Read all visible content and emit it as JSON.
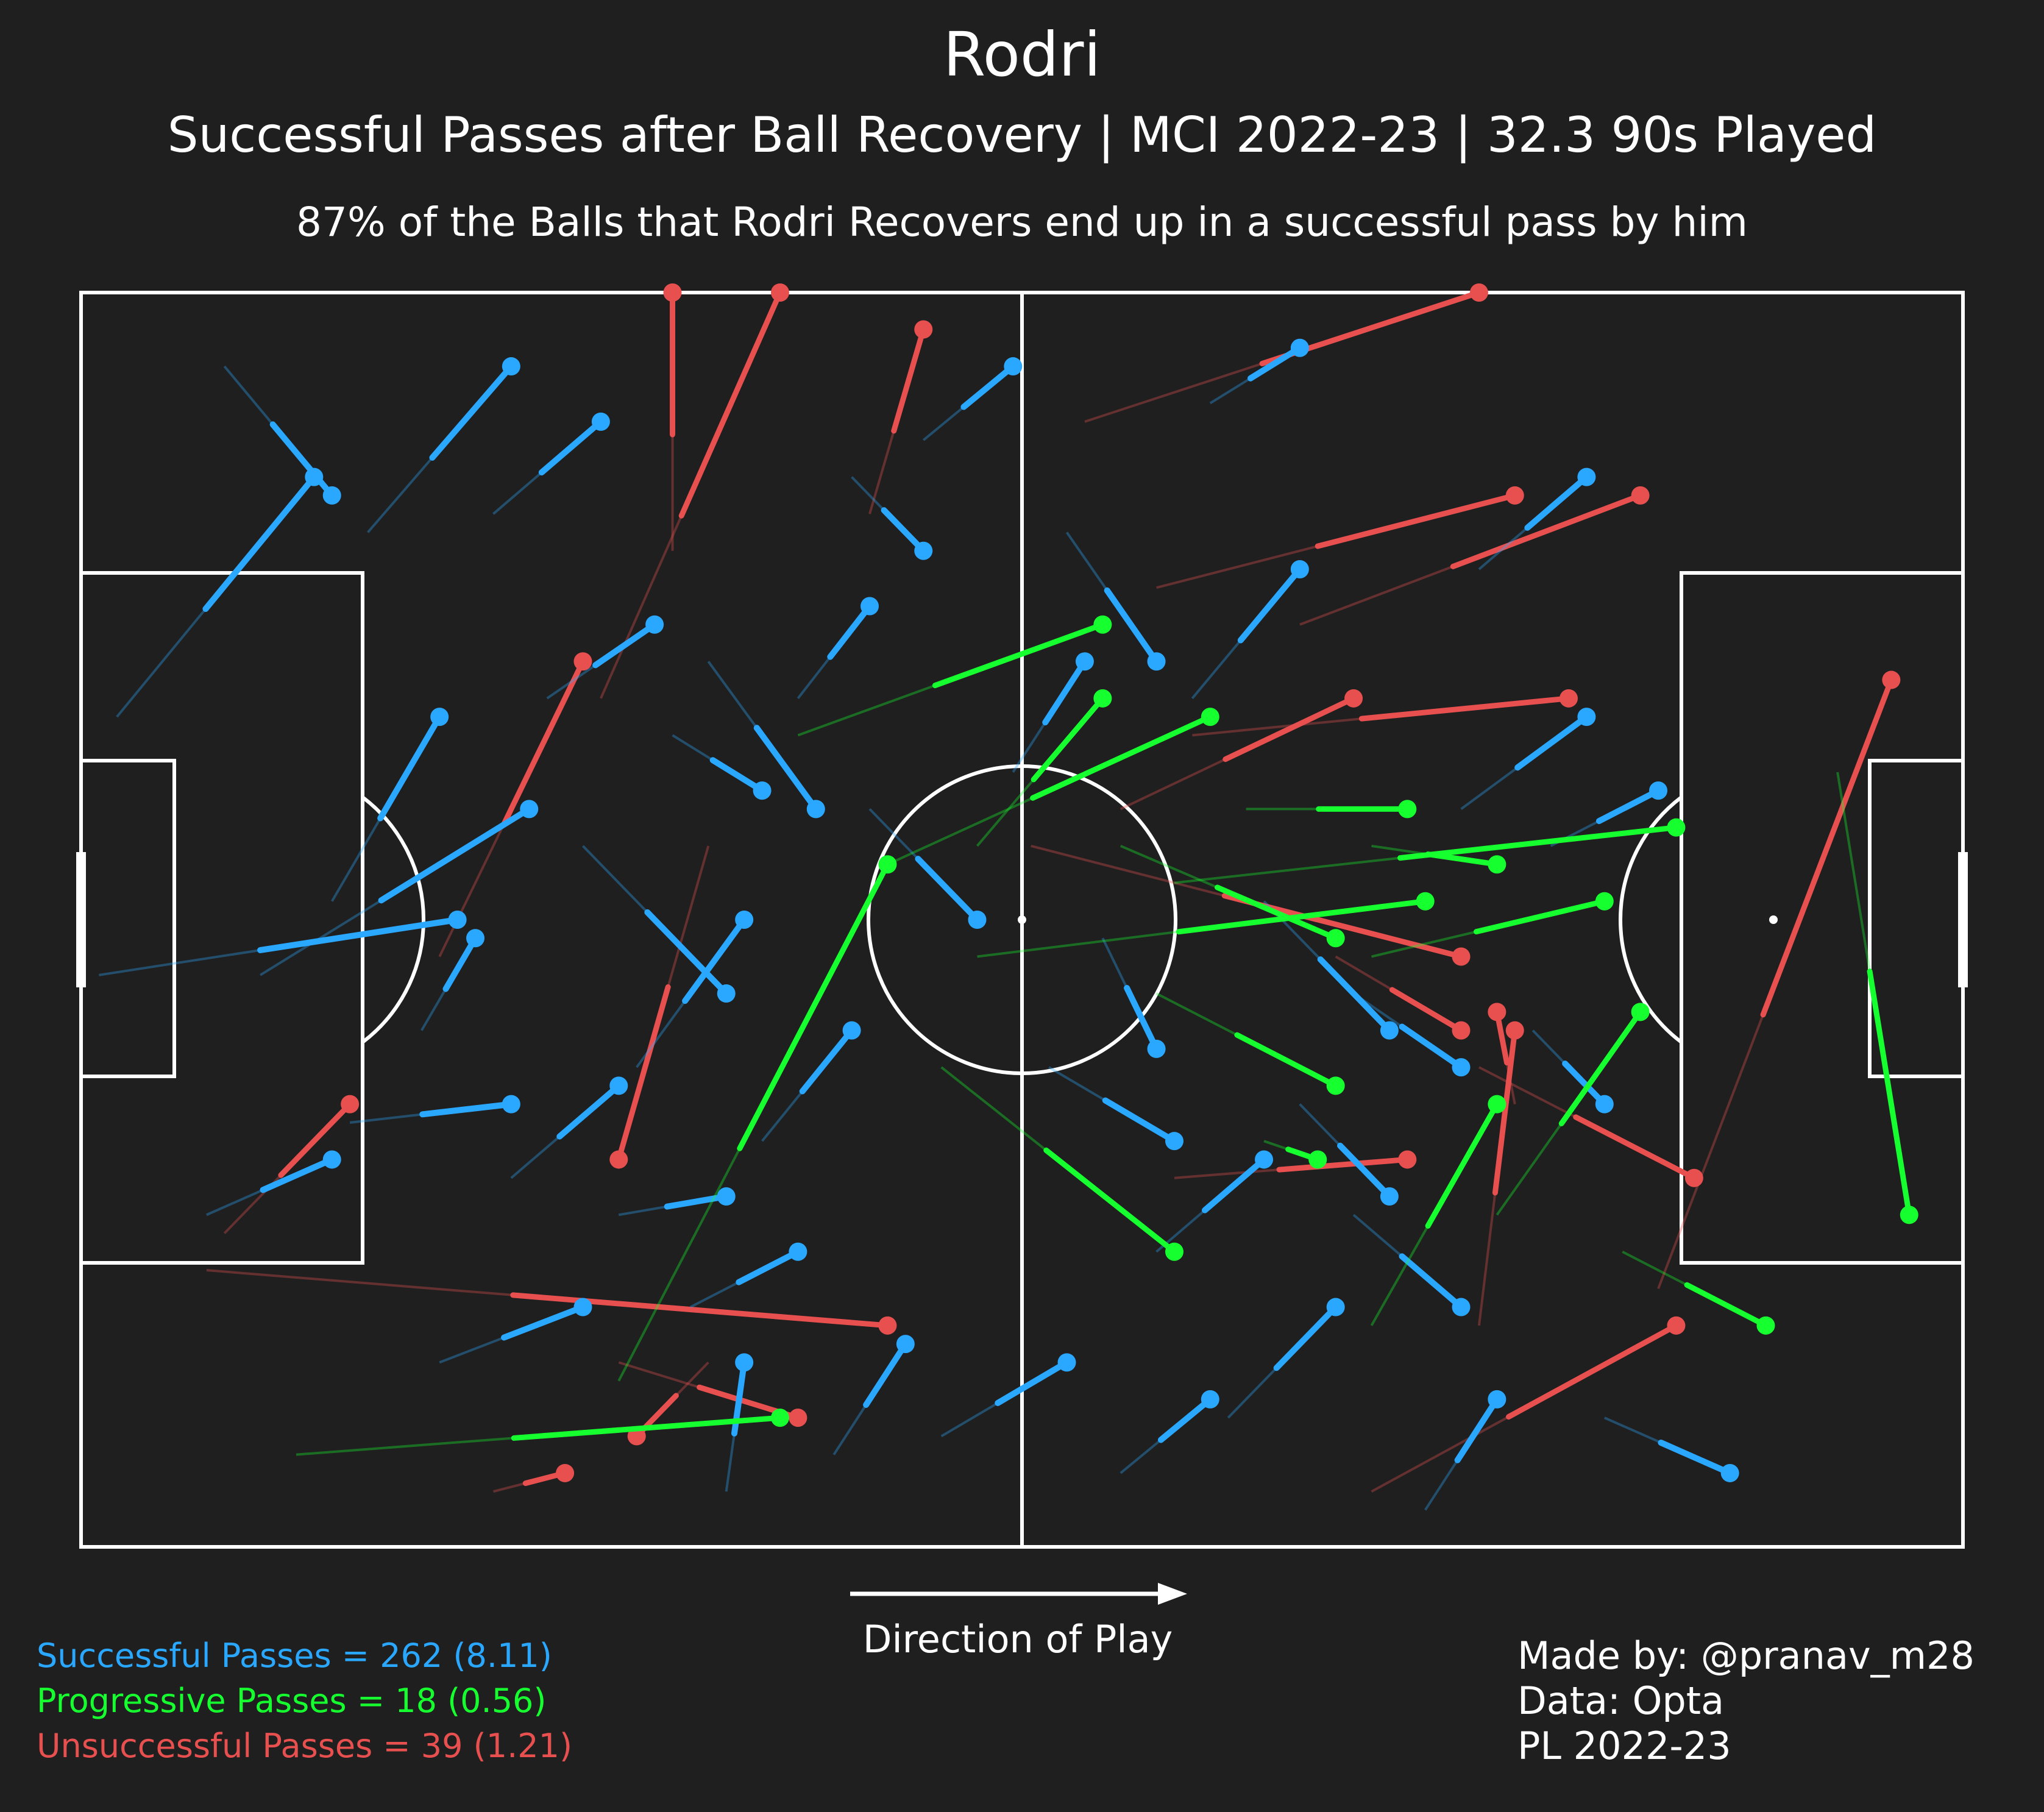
{
  "header": {
    "title": "Rodri",
    "subtitle": "Successful Passes after Ball Recovery | MCI 2022-23 | 32.3 90s Played",
    "note": "87% of the Balls that Rodri Recovers end up in a successful pass by him"
  },
  "direction_label": "Direction of Play",
  "legend": {
    "successful": "Successful Passes = 262 (8.11)",
    "progressive": "Progressive Passes = 18 (0.56)",
    "unsuccessful": "Unsuccessful Passes = 39 (1.21)"
  },
  "credits": {
    "made_by": "Made by: @pranav_m28",
    "data": "Data: Opta",
    "season": "PL 2022-23"
  },
  "colors": {
    "background": "#1f1f1f",
    "lines": "#ffffff",
    "successful": "#2aa8ff",
    "progressive": "#16ff2e",
    "unsuccessful": "#e85050"
  },
  "chart_data": {
    "type": "scatter",
    "title": "Rodri",
    "subtitle": "Successful Passes after Ball Recovery | MCI 2022-23 | 32.3 90s Played",
    "pitch": {
      "length": 105,
      "width": 68,
      "orientation": "horizontal",
      "direction": "left-to-right"
    },
    "series": [
      {
        "name": "Progressive Passes",
        "count": 18,
        "per90": 0.56,
        "passes": [
          {
            "start": [
              30,
              59
            ],
            "end": [
              45,
              31
            ]
          },
          {
            "start": [
              45,
              31
            ],
            "end": [
              63,
              23
            ]
          },
          {
            "start": [
              40,
              24
            ],
            "end": [
              57,
              18
            ]
          },
          {
            "start": [
              60,
              38
            ],
            "end": [
              70,
              43
            ]
          },
          {
            "start": [
              50,
              36
            ],
            "end": [
              75,
              33
            ]
          },
          {
            "start": [
              58,
              30
            ],
            "end": [
              70,
              35
            ]
          },
          {
            "start": [
              50,
              30
            ],
            "end": [
              57,
              22
            ]
          },
          {
            "start": [
              48,
              42
            ],
            "end": [
              61,
              52
            ]
          },
          {
            "start": [
              66,
              46
            ],
            "end": [
              69,
              47
            ]
          },
          {
            "start": [
              72,
              36
            ],
            "end": [
              85,
              33
            ]
          },
          {
            "start": [
              61,
              32
            ],
            "end": [
              89,
              29
            ]
          },
          {
            "start": [
              86,
              52
            ],
            "end": [
              94,
              56
            ]
          },
          {
            "start": [
              72,
              56
            ],
            "end": [
              79,
              44
            ]
          },
          {
            "start": [
              79,
              50
            ],
            "end": [
              87,
              39
            ]
          },
          {
            "start": [
              65,
              28
            ],
            "end": [
              74,
              28
            ]
          },
          {
            "start": [
              72,
              30
            ],
            "end": [
              79,
              31
            ]
          },
          {
            "start": [
              12,
              63
            ],
            "end": [
              39,
              61
            ]
          },
          {
            "start": [
              98,
              26
            ],
            "end": [
              102,
              50
            ]
          }
        ]
      },
      {
        "name": "Successful Passes",
        "count": 262,
        "per90": 8.11,
        "passes": [
          {
            "start": [
              8,
              4
            ],
            "end": [
              14,
              11
            ]
          },
          {
            "start": [
              2,
              23
            ],
            "end": [
              13,
              10
            ]
          },
          {
            "start": [
              16,
              13
            ],
            "end": [
              24,
              4
            ]
          },
          {
            "start": [
              1,
              37
            ],
            "end": [
              21,
              34
            ]
          },
          {
            "start": [
              7,
              50
            ],
            "end": [
              14,
              47
            ]
          },
          {
            "start": [
              10,
              37
            ],
            "end": [
              25,
              28
            ]
          },
          {
            "start": [
              14,
              33
            ],
            "end": [
              20,
              23
            ]
          },
          {
            "start": [
              19,
              40
            ],
            "end": [
              22,
              35
            ]
          },
          {
            "start": [
              15,
              45
            ],
            "end": [
              24,
              44
            ]
          },
          {
            "start": [
              23,
              12
            ],
            "end": [
              29,
              7
            ]
          },
          {
            "start": [
              28,
              30
            ],
            "end": [
              36,
              38
            ]
          },
          {
            "start": [
              30,
              50
            ],
            "end": [
              36,
              49
            ]
          },
          {
            "start": [
              35,
              20
            ],
            "end": [
              41,
              28
            ]
          },
          {
            "start": [
              43,
              10
            ],
            "end": [
              47,
              14
            ]
          },
          {
            "start": [
              55,
              13
            ],
            "end": [
              60,
              20
            ]
          },
          {
            "start": [
              62,
              22
            ],
            "end": [
              68,
              15
            ]
          },
          {
            "start": [
              66,
              33
            ],
            "end": [
              73,
              40
            ]
          },
          {
            "start": [
              71,
              38
            ],
            "end": [
              77,
              42
            ]
          },
          {
            "start": [
              78,
              15
            ],
            "end": [
              84,
              10
            ]
          },
          {
            "start": [
              77,
              28
            ],
            "end": [
              84,
              23
            ]
          },
          {
            "start": [
              71,
              50
            ],
            "end": [
              77,
              55
            ]
          },
          {
            "start": [
              85,
              61
            ],
            "end": [
              92,
              64
            ]
          },
          {
            "start": [
              36,
              65
            ],
            "end": [
              37,
              58
            ]
          },
          {
            "start": [
              42,
              63
            ],
            "end": [
              46,
              57
            ]
          },
          {
            "start": [
              48,
              62
            ],
            "end": [
              55,
              58
            ]
          },
          {
            "start": [
              58,
              64
            ],
            "end": [
              63,
              60
            ]
          },
          {
            "start": [
              64,
              61
            ],
            "end": [
              70,
              55
            ]
          },
          {
            "start": [
              75,
              66
            ],
            "end": [
              79,
              60
            ]
          },
          {
            "start": [
              20,
              58
            ],
            "end": [
              28,
              55
            ]
          },
          {
            "start": [
              24,
              48
            ],
            "end": [
              30,
              43
            ]
          },
          {
            "start": [
              31,
              42
            ],
            "end": [
              37,
              34
            ]
          },
          {
            "start": [
              38,
              46
            ],
            "end": [
              43,
              40
            ]
          },
          {
            "start": [
              44,
              28
            ],
            "end": [
              50,
              34
            ]
          },
          {
            "start": [
              52,
              26
            ],
            "end": [
              56,
              20
            ]
          },
          {
            "start": [
              54,
              42
            ],
            "end": [
              61,
              46
            ]
          },
          {
            "start": [
              60,
              52
            ],
            "end": [
              66,
              47
            ]
          },
          {
            "start": [
              68,
              44
            ],
            "end": [
              73,
              49
            ]
          },
          {
            "start": [
              81,
              40
            ],
            "end": [
              85,
              44
            ]
          },
          {
            "start": [
              82,
              30
            ],
            "end": [
              88,
              27
            ]
          },
          {
            "start": [
              26,
              22
            ],
            "end": [
              32,
              18
            ]
          },
          {
            "start": [
              33,
              24
            ],
            "end": [
              38,
              27
            ]
          },
          {
            "start": [
              40,
              22
            ],
            "end": [
              44,
              17
            ]
          },
          {
            "start": [
              47,
              8
            ],
            "end": [
              52,
              4
            ]
          },
          {
            "start": [
              63,
              6
            ],
            "end": [
              68,
              3
            ]
          },
          {
            "start": [
              57,
              35
            ],
            "end": [
              60,
              41
            ]
          },
          {
            "start": [
              34,
              55
            ],
            "end": [
              40,
              52
            ]
          }
        ]
      },
      {
        "name": "Unsuccessful Passes",
        "count": 39,
        "per90": 1.21,
        "passes": [
          {
            "start": [
              33,
              14
            ],
            "end": [
              33,
              0
            ]
          },
          {
            "start": [
              29,
              22
            ],
            "end": [
              39,
              0
            ]
          },
          {
            "start": [
              44,
              12
            ],
            "end": [
              47,
              2
            ]
          },
          {
            "start": [
              56,
              7
            ],
            "end": [
              78,
              0
            ]
          },
          {
            "start": [
              60,
              16
            ],
            "end": [
              80,
              11
            ]
          },
          {
            "start": [
              68,
              18
            ],
            "end": [
              87,
              11
            ]
          },
          {
            "start": [
              62,
              24
            ],
            "end": [
              83,
              22
            ]
          },
          {
            "start": [
              58,
              28
            ],
            "end": [
              71,
              22
            ]
          },
          {
            "start": [
              88,
              54
            ],
            "end": [
              101,
              21
            ]
          },
          {
            "start": [
              70,
              36
            ],
            "end": [
              77,
              40
            ]
          },
          {
            "start": [
              78,
              42
            ],
            "end": [
              90,
              48
            ]
          },
          {
            "start": [
              53,
              30
            ],
            "end": [
              77,
              36
            ]
          },
          {
            "start": [
              80,
              44
            ],
            "end": [
              79,
              39
            ]
          },
          {
            "start": [
              61,
              48
            ],
            "end": [
              74,
              47
            ]
          },
          {
            "start": [
              8,
              51
            ],
            "end": [
              15,
              44
            ]
          },
          {
            "start": [
              7,
              53
            ],
            "end": [
              45,
              56
            ]
          },
          {
            "start": [
              30,
              58
            ],
            "end": [
              40,
              61
            ]
          },
          {
            "start": [
              72,
              65
            ],
            "end": [
              89,
              56
            ]
          },
          {
            "start": [
              23,
              65
            ],
            "end": [
              27,
              64
            ]
          },
          {
            "start": [
              20,
              36
            ],
            "end": [
              28,
              20
            ]
          },
          {
            "start": [
              35,
              30
            ],
            "end": [
              30,
              47
            ]
          },
          {
            "start": [
              35,
              58
            ],
            "end": [
              31,
              62
            ]
          },
          {
            "start": [
              78,
              56
            ],
            "end": [
              80,
              40
            ]
          }
        ]
      }
    ]
  }
}
